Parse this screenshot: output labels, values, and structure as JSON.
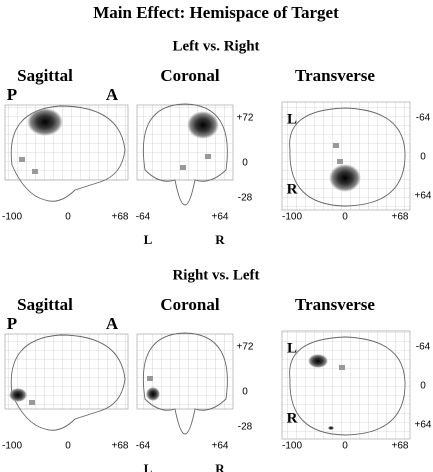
{
  "title": "Main Effect: Hemispace of Target",
  "panels": [
    {
      "title": "Left vs. Right",
      "views": [
        {
          "label": "Sagittal",
          "corners": [
            "P",
            "A"
          ],
          "x_ticks": [
            "-100",
            "0",
            "+68"
          ]
        },
        {
          "label": "Coronal",
          "x_ticks": [
            "-64",
            "+64"
          ],
          "y_ticks": [
            "+72",
            "0",
            "-28"
          ],
          "sides": [
            "L",
            "R"
          ]
        },
        {
          "label": "Transverse",
          "corners": [
            "L",
            "R"
          ],
          "y_ticks": [
            "-64",
            "0",
            "+64"
          ],
          "x_ticks": [
            "-100",
            "0",
            "+68"
          ]
        }
      ]
    },
    {
      "title": "Right vs. Left",
      "views": [
        {
          "label": "Sagittal",
          "corners": [
            "P",
            "A"
          ],
          "x_ticks": [
            "-100",
            "0",
            "+68"
          ]
        },
        {
          "label": "Coronal",
          "x_ticks": [
            "-64",
            "+64"
          ],
          "y_ticks": [
            "+72",
            "0",
            "-28"
          ],
          "sides": [
            "L",
            "R"
          ]
        },
        {
          "label": "Transverse",
          "corners": [
            "L",
            "R"
          ],
          "y_ticks": [
            "-64",
            "0",
            "+64"
          ],
          "x_ticks": [
            "-100",
            "0",
            "+68"
          ]
        }
      ]
    }
  ]
}
